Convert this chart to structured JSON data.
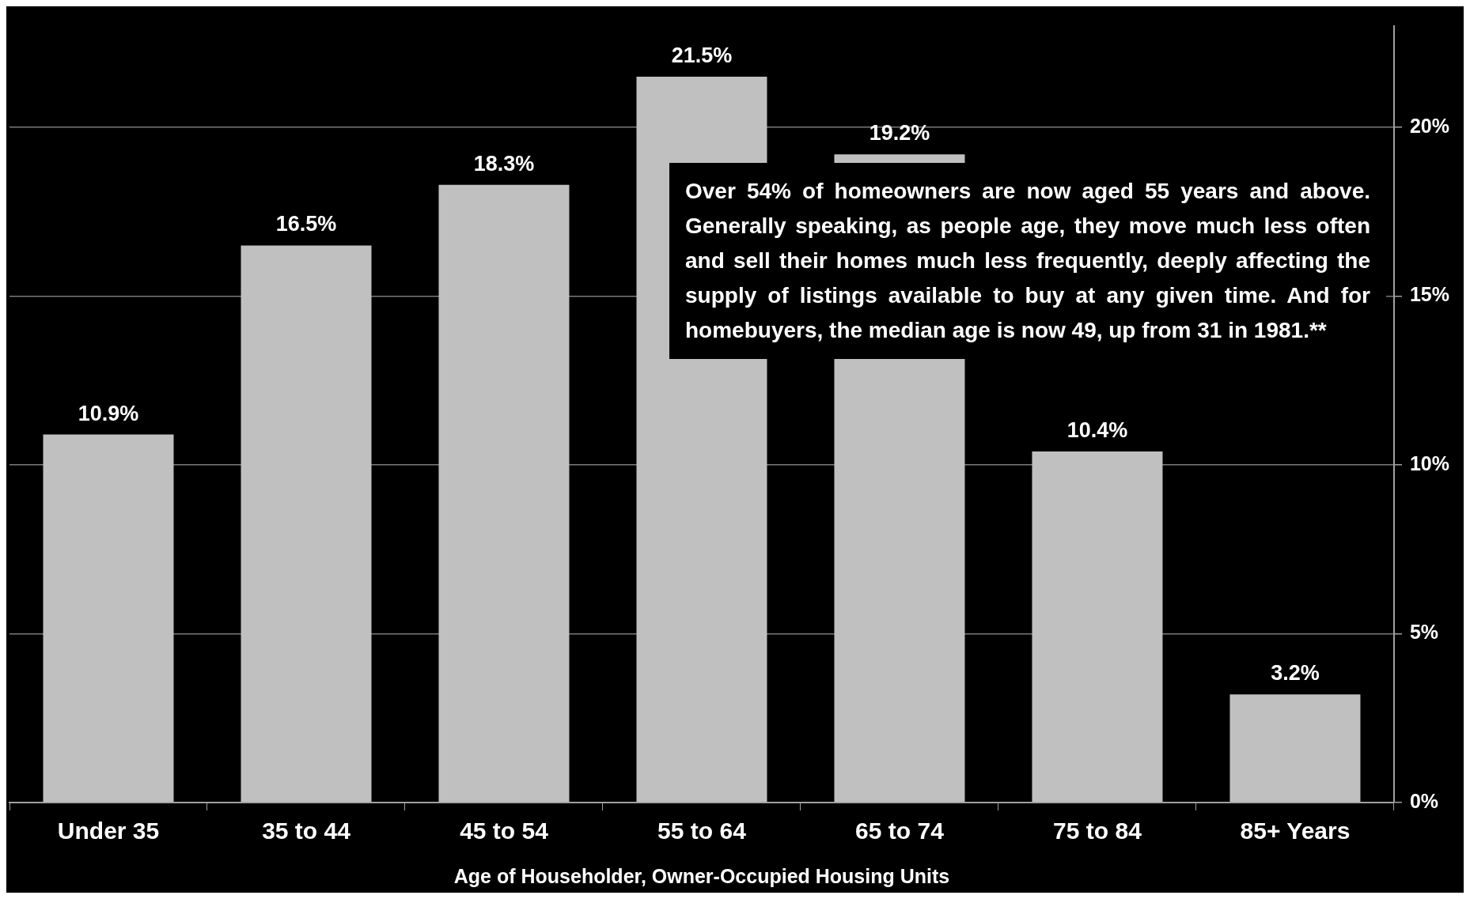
{
  "chart_data": {
    "type": "bar",
    "xlabel": "Age of Householder, Owner-Occupied Housing Units",
    "categories": [
      "Under 35",
      "35 to 44",
      "45 to 54",
      "55 to 64",
      "65 to 74",
      "75 to 84",
      "85+ Years"
    ],
    "values": [
      10.9,
      16.5,
      18.3,
      21.5,
      19.2,
      10.4,
      3.2
    ],
    "value_labels": [
      "10.9%",
      "16.5%",
      "18.3%",
      "21.5%",
      "19.2%",
      "10.4%",
      "3.2%"
    ],
    "color": "#c0c0c0",
    "ylim": [
      0,
      23
    ],
    "yticks": [
      {
        "value": 0,
        "label": "0%"
      },
      {
        "value": 5,
        "label": "5%"
      },
      {
        "value": 10,
        "label": "10%"
      },
      {
        "value": 15,
        "label": "15%"
      },
      {
        "value": 20,
        "label": "20%"
      }
    ],
    "grid": "y",
    "annotations": [
      "Over 54% of homeowners are now aged 55 years and above. Generally speaking, as people age, they move much less often and sell their homes much less frequently, deeply affecting the supply of listings available to buy at any given time. And for homebuyers, the median age is now 49, up from 31 in 1981.**"
    ]
  }
}
